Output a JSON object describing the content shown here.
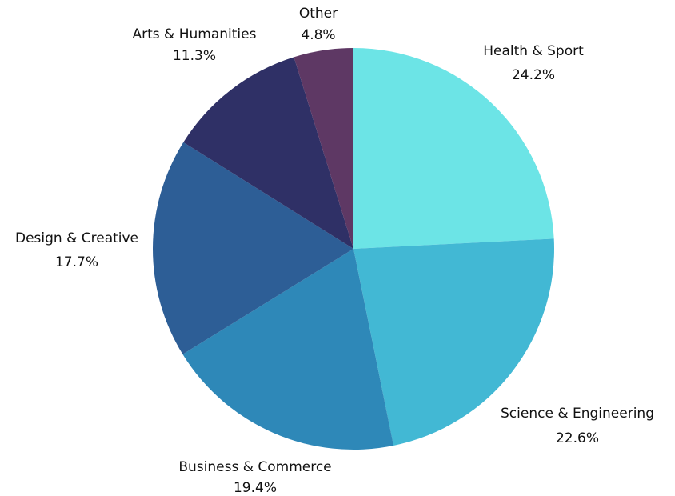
{
  "chart_data": {
    "type": "pie",
    "categories": [
      "Health & Sport",
      "Science & Engineering",
      "Business & Commerce",
      "Design & Creative",
      "Arts & Humanities",
      "Other"
    ],
    "values": [
      24.2,
      22.6,
      19.4,
      17.7,
      11.3,
      4.8
    ],
    "value_labels": [
      "24.2%",
      "22.6%",
      "19.4%",
      "17.7%",
      "11.3%",
      "4.8%"
    ],
    "colors": [
      "#6ce4e6",
      "#42b8d4",
      "#2e88b8",
      "#2d5e96",
      "#2f3066",
      "#5e3864"
    ]
  }
}
